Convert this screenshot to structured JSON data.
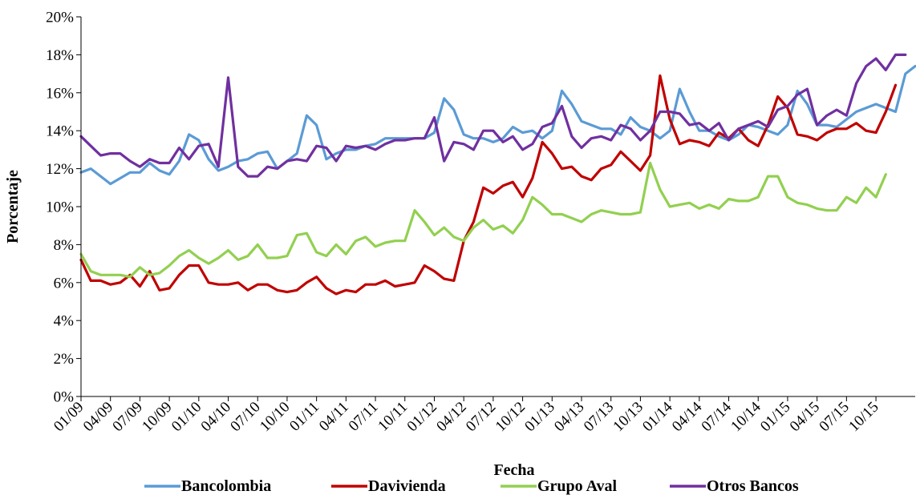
{
  "chart_data": {
    "type": "line",
    "xlabel": "Fecha",
    "ylabel": "Porcentaje",
    "ylim": [
      0,
      20
    ],
    "y_ticks": [
      "0%",
      "2%",
      "4%",
      "6%",
      "8%",
      "10%",
      "12%",
      "14%",
      "16%",
      "18%",
      "20%"
    ],
    "x_tick_labels": [
      "01/09",
      "04/09",
      "07/09",
      "10/09",
      "01/10",
      "04/10",
      "07/10",
      "10/10",
      "01/11",
      "04/11",
      "07/11",
      "10/11",
      "01/12",
      "04/12",
      "07/12",
      "10/12",
      "01/13",
      "04/13",
      "07/13",
      "10/13",
      "01/14",
      "04/14",
      "07/14",
      "10/14",
      "01/15",
      "04/15",
      "07/15",
      "10/15"
    ],
    "x_start": "01/09",
    "x_end": "12/15",
    "grid": false,
    "legend_position": "bottom",
    "series": [
      {
        "name": "Bancolombia",
        "color": "#5B9BD5",
        "values": [
          11.8,
          12.0,
          11.6,
          11.2,
          11.5,
          11.8,
          11.8,
          12.3,
          11.9,
          11.7,
          12.4,
          13.8,
          13.5,
          12.5,
          11.9,
          12.1,
          12.4,
          12.5,
          12.8,
          12.9,
          12.0,
          12.4,
          12.8,
          14.8,
          14.3,
          12.5,
          12.8,
          13.0,
          13.0,
          13.2,
          13.3,
          13.6,
          13.6,
          13.6,
          13.6,
          13.6,
          13.9,
          15.7,
          15.1,
          13.8,
          13.6,
          13.6,
          13.4,
          13.6,
          14.2,
          13.9,
          14.0,
          13.6,
          14.0,
          16.1,
          15.4,
          14.5,
          14.3,
          14.1,
          14.1,
          13.8,
          14.7,
          14.2,
          14.0,
          13.6,
          14.0,
          16.2,
          15.0,
          14.0,
          14.0,
          13.7,
          13.5,
          13.8,
          14.3,
          14.2,
          14.0,
          13.8,
          14.3,
          16.1,
          15.4,
          14.3,
          14.3,
          14.2,
          14.6,
          15.0,
          15.2,
          15.4,
          15.2,
          15.0,
          17.0,
          17.4
        ]
      },
      {
        "name": "Davivienda",
        "color": "#C00000",
        "values": [
          7.2,
          6.1,
          6.1,
          5.9,
          6.0,
          6.4,
          5.8,
          6.6,
          5.6,
          5.7,
          6.4,
          6.9,
          6.9,
          6.0,
          5.9,
          5.9,
          6.0,
          5.6,
          5.9,
          5.9,
          5.6,
          5.5,
          5.6,
          6.0,
          6.3,
          5.7,
          5.4,
          5.6,
          5.5,
          5.9,
          5.9,
          6.1,
          5.8,
          5.9,
          6.0,
          6.9,
          6.6,
          6.2,
          6.1,
          8.2,
          9.2,
          11.0,
          10.7,
          11.1,
          11.3,
          10.5,
          11.5,
          13.4,
          12.8,
          12.0,
          12.1,
          11.6,
          11.4,
          12.0,
          12.2,
          12.9,
          12.4,
          11.9,
          12.7,
          16.9,
          14.6,
          13.3,
          13.5,
          13.4,
          13.2,
          13.9,
          13.6,
          14.1,
          13.5,
          13.2,
          14.3,
          15.8,
          15.2,
          13.8,
          13.7,
          13.5,
          13.9,
          14.1,
          14.1,
          14.4,
          14.0,
          13.9,
          15.0,
          16.4
        ]
      },
      {
        "name": "Grupo Aval",
        "color": "#92D050",
        "values": [
          7.5,
          6.6,
          6.4,
          6.4,
          6.4,
          6.3,
          6.8,
          6.4,
          6.5,
          6.9,
          7.4,
          7.7,
          7.3,
          7.0,
          7.3,
          7.7,
          7.2,
          7.4,
          8.0,
          7.3,
          7.3,
          7.4,
          8.5,
          8.6,
          7.6,
          7.4,
          8.0,
          7.5,
          8.2,
          8.4,
          7.9,
          8.1,
          8.2,
          8.2,
          9.8,
          9.2,
          8.5,
          8.9,
          8.4,
          8.2,
          8.9,
          9.3,
          8.8,
          9.0,
          8.6,
          9.3,
          10.5,
          10.1,
          9.6,
          9.6,
          9.4,
          9.2,
          9.6,
          9.8,
          9.7,
          9.6,
          9.6,
          9.7,
          12.3,
          10.9,
          10.0,
          10.1,
          10.2,
          9.9,
          10.1,
          9.9,
          10.4,
          10.3,
          10.3,
          10.5,
          11.6,
          11.6,
          10.5,
          10.2,
          10.1,
          9.9,
          9.8,
          9.8,
          10.5,
          10.2,
          11.0,
          10.5,
          11.7
        ]
      },
      {
        "name": "Otros Bancos",
        "color": "#7030A0",
        "values": [
          13.7,
          13.2,
          12.7,
          12.8,
          12.8,
          12.4,
          12.1,
          12.5,
          12.3,
          12.3,
          13.1,
          12.5,
          13.2,
          13.3,
          12.1,
          16.8,
          12.1,
          11.6,
          11.6,
          12.1,
          12.0,
          12.4,
          12.5,
          12.4,
          13.2,
          13.1,
          12.4,
          13.2,
          13.1,
          13.2,
          13.0,
          13.3,
          13.5,
          13.5,
          13.6,
          13.6,
          14.7,
          12.4,
          13.4,
          13.3,
          13.0,
          14.0,
          14.0,
          13.4,
          13.7,
          13.0,
          13.3,
          14.2,
          14.4,
          15.3,
          13.7,
          13.1,
          13.6,
          13.7,
          13.5,
          14.3,
          14.1,
          13.5,
          14.0,
          15.0,
          15.0,
          14.9,
          14.3,
          14.4,
          14.0,
          14.4,
          13.5,
          14.1,
          14.3,
          14.5,
          14.2,
          15.1,
          15.3,
          15.9,
          16.2,
          14.3,
          14.8,
          15.1,
          14.8,
          16.5,
          17.4,
          17.8,
          17.2,
          18.0,
          18.0
        ]
      }
    ]
  }
}
